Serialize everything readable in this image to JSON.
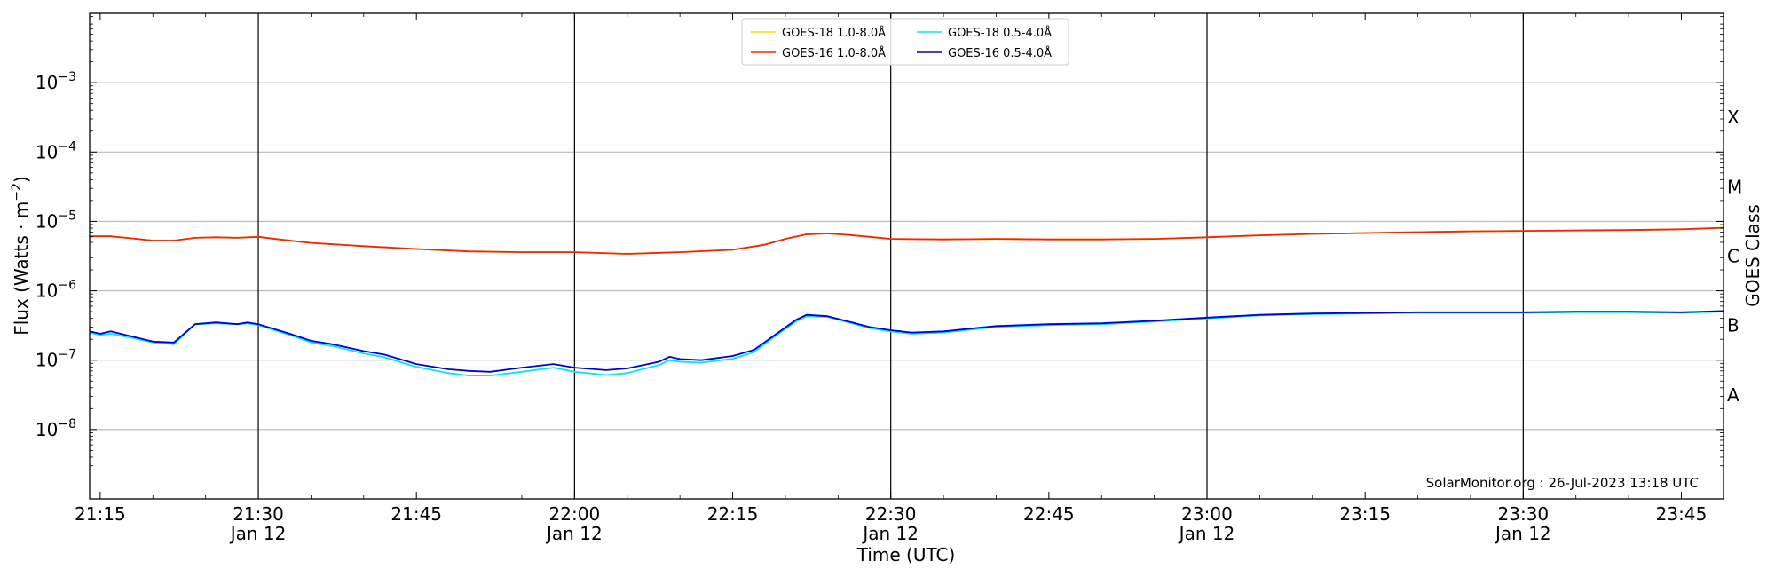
{
  "chart_data": {
    "type": "line",
    "xlabel": "Time (UTC)",
    "ylabel_main": "Flux (Watts",
    "ylabel_unit": "m",
    "ylabel_exp": "−2",
    "ylabel_right": "GOES Class",
    "y_scale": "log",
    "ylim": [
      1e-09,
      0.01
    ],
    "xlim": [
      "21:14",
      "23:49"
    ],
    "x_ticks": [
      {
        "t": "21:15",
        "label": "21:15",
        "sub": ""
      },
      {
        "t": "21:30",
        "label": "21:30",
        "sub": "Jan 12"
      },
      {
        "t": "21:45",
        "label": "21:45",
        "sub": ""
      },
      {
        "t": "22:00",
        "label": "22:00",
        "sub": "Jan 12"
      },
      {
        "t": "22:15",
        "label": "22:15",
        "sub": ""
      },
      {
        "t": "22:30",
        "label": "22:30",
        "sub": "Jan 12"
      },
      {
        "t": "22:45",
        "label": "22:45",
        "sub": ""
      },
      {
        "t": "23:00",
        "label": "23:00",
        "sub": "Jan 12"
      },
      {
        "t": "23:15",
        "label": "23:15",
        "sub": ""
      },
      {
        "t": "23:30",
        "label": "23:30",
        "sub": "Jan 12"
      },
      {
        "t": "23:45",
        "label": "23:45",
        "sub": ""
      }
    ],
    "vertical_lines": [
      "21:30",
      "22:00",
      "22:30",
      "23:00",
      "23:30"
    ],
    "y_ticks": [
      {
        "value": 1e-08,
        "base": "10",
        "exp": "−8"
      },
      {
        "value": 1e-07,
        "base": "10",
        "exp": "−7"
      },
      {
        "value": 1e-06,
        "base": "10",
        "exp": "−6"
      },
      {
        "value": 1e-05,
        "base": "10",
        "exp": "−5"
      },
      {
        "value": 0.0001,
        "base": "10",
        "exp": "−4"
      },
      {
        "value": 0.001,
        "base": "10",
        "exp": "−3"
      }
    ],
    "gridlines_y": [
      1e-08,
      1e-07,
      1e-06,
      1e-05,
      0.0001,
      0.001
    ],
    "goes_classes": [
      {
        "label": "A",
        "value": 3.16e-08
      },
      {
        "label": "B",
        "value": 3.16e-07
      },
      {
        "label": "C",
        "value": 3.16e-06
      },
      {
        "label": "M",
        "value": 3.16e-05
      },
      {
        "label": "X",
        "value": 0.000316
      }
    ],
    "legend": {
      "placement": "top-center",
      "entries": [
        {
          "label": "GOES-18 1.0-8.0Å",
          "color": "#ffd700"
        },
        {
          "label": "GOES-16 1.0-8.0Å",
          "color": "#ff2000"
        },
        {
          "label": "GOES-18 0.5-4.0Å",
          "color": "#00e5ff"
        },
        {
          "label": "GOES-16 0.5-4.0Å",
          "color": "#0000d8"
        }
      ]
    },
    "watermark": "SolarMonitor.org : 26-Jul-2023 13:18 UTC",
    "series": [
      {
        "name": "GOES-18 1.0-8.0Å",
        "color": "#ffd700",
        "x": [
          "21:14",
          "21:16",
          "21:18",
          "21:20",
          "21:22",
          "21:24",
          "21:26",
          "21:28",
          "21:30",
          "21:32",
          "21:35",
          "21:40",
          "21:45",
          "21:50",
          "21:55",
          "22:00",
          "22:05",
          "22:10",
          "22:15",
          "22:18",
          "22:20",
          "22:22",
          "22:24",
          "22:26",
          "22:28",
          "22:30",
          "22:35",
          "22:40",
          "22:45",
          "22:50",
          "22:55",
          "23:00",
          "23:05",
          "23:10",
          "23:15",
          "23:20",
          "23:25",
          "23:30",
          "23:35",
          "23:40",
          "23:45",
          "23:49"
        ],
        "y": [
          6.1e-06,
          6.1e-06,
          5.7e-06,
          5.3e-06,
          5.3e-06,
          5.8e-06,
          5.9e-06,
          5.8e-06,
          6e-06,
          5.5e-06,
          4.9e-06,
          4.4e-06,
          4e-06,
          3.7e-06,
          3.6e-06,
          3.6e-06,
          3.4e-06,
          3.6e-06,
          3.9e-06,
          4.6e-06,
          5.6e-06,
          6.5e-06,
          6.7e-06,
          6.4e-06,
          6e-06,
          5.6e-06,
          5.5e-06,
          5.6e-06,
          5.5e-06,
          5.5e-06,
          5.6e-06,
          5.9e-06,
          6.3e-06,
          6.6e-06,
          6.8e-06,
          7e-06,
          7.2e-06,
          7.3e-06,
          7.4e-06,
          7.5e-06,
          7.7e-06,
          8.1e-06
        ]
      },
      {
        "name": "GOES-16 1.0-8.0Å",
        "color": "#ff2000",
        "x": [
          "21:14",
          "21:16",
          "21:18",
          "21:20",
          "21:22",
          "21:24",
          "21:26",
          "21:28",
          "21:30",
          "21:32",
          "21:35",
          "21:40",
          "21:45",
          "21:50",
          "21:55",
          "22:00",
          "22:05",
          "22:10",
          "22:15",
          "22:18",
          "22:20",
          "22:22",
          "22:24",
          "22:26",
          "22:28",
          "22:30",
          "22:35",
          "22:40",
          "22:45",
          "22:50",
          "22:55",
          "23:00",
          "23:05",
          "23:10",
          "23:15",
          "23:20",
          "23:25",
          "23:30",
          "23:35",
          "23:40",
          "23:45",
          "23:49"
        ],
        "y": [
          6.1e-06,
          6.1e-06,
          5.7e-06,
          5.3e-06,
          5.3e-06,
          5.8e-06,
          5.9e-06,
          5.8e-06,
          6e-06,
          5.5e-06,
          4.9e-06,
          4.4e-06,
          4e-06,
          3.7e-06,
          3.6e-06,
          3.6e-06,
          3.4e-06,
          3.6e-06,
          3.9e-06,
          4.6e-06,
          5.6e-06,
          6.5e-06,
          6.7e-06,
          6.4e-06,
          6e-06,
          5.6e-06,
          5.5e-06,
          5.6e-06,
          5.5e-06,
          5.5e-06,
          5.6e-06,
          5.9e-06,
          6.3e-06,
          6.6e-06,
          6.8e-06,
          7e-06,
          7.2e-06,
          7.3e-06,
          7.4e-06,
          7.5e-06,
          7.7e-06,
          8.1e-06
        ]
      },
      {
        "name": "GOES-18 0.5-4.0Å",
        "color": "#00e5ff",
        "x": [
          "21:14",
          "21:15",
          "21:16",
          "21:18",
          "21:20",
          "21:22",
          "21:24",
          "21:26",
          "21:28",
          "21:29",
          "21:30",
          "21:33",
          "21:35",
          "21:37",
          "21:40",
          "21:42",
          "21:45",
          "21:48",
          "21:50",
          "21:52",
          "21:55",
          "21:58",
          "22:00",
          "22:03",
          "22:05",
          "22:08",
          "22:09",
          "22:10",
          "22:12",
          "22:15",
          "22:17",
          "22:19",
          "22:21",
          "22:22",
          "22:24",
          "22:26",
          "22:28",
          "22:30",
          "22:32",
          "22:35",
          "22:38",
          "22:40",
          "22:45",
          "22:50",
          "22:55",
          "23:00",
          "23:05",
          "23:10",
          "23:15",
          "23:20",
          "23:25",
          "23:30",
          "23:35",
          "23:40",
          "23:45",
          "23:49"
        ],
        "y": [
          2.5e-07,
          2.3e-07,
          2.4e-07,
          2.1e-07,
          1.8e-07,
          1.7e-07,
          3.3e-07,
          3.4e-07,
          3.3e-07,
          3.4e-07,
          3.2e-07,
          2.3e-07,
          1.8e-07,
          1.6e-07,
          1.25e-07,
          1.1e-07,
          8e-08,
          6.5e-08,
          6e-08,
          6e-08,
          6.8e-08,
          7.8e-08,
          6.8e-08,
          6.1e-08,
          6.5e-08,
          8.5e-08,
          1e-07,
          9.5e-08,
          9.2e-08,
          1.05e-07,
          1.3e-07,
          2.2e-07,
          3.6e-07,
          4.3e-07,
          4.2e-07,
          3.5e-07,
          2.9e-07,
          2.6e-07,
          2.4e-07,
          2.5e-07,
          2.8e-07,
          3e-07,
          3.2e-07,
          3.3e-07,
          3.6e-07,
          4e-07,
          4.4e-07,
          4.6e-07,
          4.7e-07,
          4.8e-07,
          4.8e-07,
          4.8e-07,
          4.9e-07,
          4.9e-07,
          4.8e-07,
          5e-07
        ]
      },
      {
        "name": "GOES-16 0.5-4.0Å",
        "color": "#0000d8",
        "x": [
          "21:14",
          "21:15",
          "21:16",
          "21:18",
          "21:20",
          "21:22",
          "21:24",
          "21:26",
          "21:28",
          "21:29",
          "21:30",
          "21:33",
          "21:35",
          "21:37",
          "21:40",
          "21:42",
          "21:45",
          "21:48",
          "21:50",
          "21:52",
          "21:55",
          "21:58",
          "22:00",
          "22:03",
          "22:05",
          "22:08",
          "22:09",
          "22:10",
          "22:12",
          "22:15",
          "22:17",
          "22:19",
          "22:21",
          "22:22",
          "22:24",
          "22:26",
          "22:28",
          "22:30",
          "22:32",
          "22:35",
          "22:38",
          "22:40",
          "22:45",
          "22:50",
          "22:55",
          "23:00",
          "23:05",
          "23:10",
          "23:15",
          "23:20",
          "23:25",
          "23:30",
          "23:35",
          "23:40",
          "23:45",
          "23:49"
        ],
        "y": [
          2.6e-07,
          2.4e-07,
          2.6e-07,
          2.2e-07,
          1.85e-07,
          1.8e-07,
          3.3e-07,
          3.5e-07,
          3.3e-07,
          3.5e-07,
          3.3e-07,
          2.4e-07,
          1.9e-07,
          1.7e-07,
          1.35e-07,
          1.2e-07,
          8.8e-08,
          7.4e-08,
          7e-08,
          6.8e-08,
          7.8e-08,
          8.8e-08,
          7.8e-08,
          7.2e-08,
          7.6e-08,
          9.5e-08,
          1.12e-07,
          1.04e-07,
          1e-07,
          1.15e-07,
          1.4e-07,
          2.3e-07,
          3.8e-07,
          4.5e-07,
          4.3e-07,
          3.6e-07,
          3e-07,
          2.7e-07,
          2.5e-07,
          2.6e-07,
          2.9e-07,
          3.1e-07,
          3.3e-07,
          3.4e-07,
          3.7e-07,
          4.1e-07,
          4.5e-07,
          4.7e-07,
          4.8e-07,
          4.9e-07,
          4.9e-07,
          4.9e-07,
          5e-07,
          5e-07,
          4.9e-07,
          5.1e-07
        ]
      }
    ]
  }
}
